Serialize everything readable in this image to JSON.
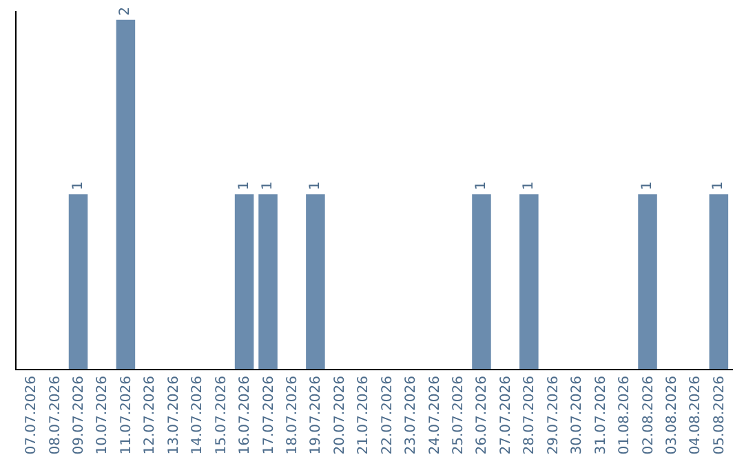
{
  "chart_data": {
    "type": "bar",
    "categories": [
      "07.07.2026",
      "08.07.2026",
      "09.07.2026",
      "10.07.2026",
      "11.07.2026",
      "12.07.2026",
      "13.07.2026",
      "14.07.2026",
      "15.07.2026",
      "16.07.2026",
      "17.07.2026",
      "18.07.2026",
      "19.07.2026",
      "20.07.2026",
      "21.07.2026",
      "22.07.2026",
      "23.07.2026",
      "24.07.2026",
      "25.07.2026",
      "26.07.2026",
      "27.07.2026",
      "28.07.2026",
      "29.07.2026",
      "30.07.2026",
      "31.07.2026",
      "01.08.2026",
      "02.08.2026",
      "03.08.2026",
      "04.08.2026",
      "05.08.2026"
    ],
    "values": [
      0,
      0,
      1,
      0,
      2,
      0,
      0,
      0,
      0,
      1,
      1,
      0,
      1,
      0,
      0,
      0,
      0,
      0,
      0,
      1,
      0,
      1,
      0,
      0,
      0,
      0,
      1,
      0,
      0,
      1
    ],
    "value_labels": [
      null,
      null,
      "1",
      null,
      "2",
      null,
      null,
      null,
      null,
      "1",
      "1",
      null,
      "1",
      null,
      null,
      null,
      null,
      null,
      null,
      "1",
      null,
      "1",
      null,
      null,
      null,
      null,
      "1",
      null,
      null,
      "1"
    ],
    "color": "#6b8cae",
    "ylim": [
      0,
      2.05
    ],
    "tick_labels": "x"
  }
}
